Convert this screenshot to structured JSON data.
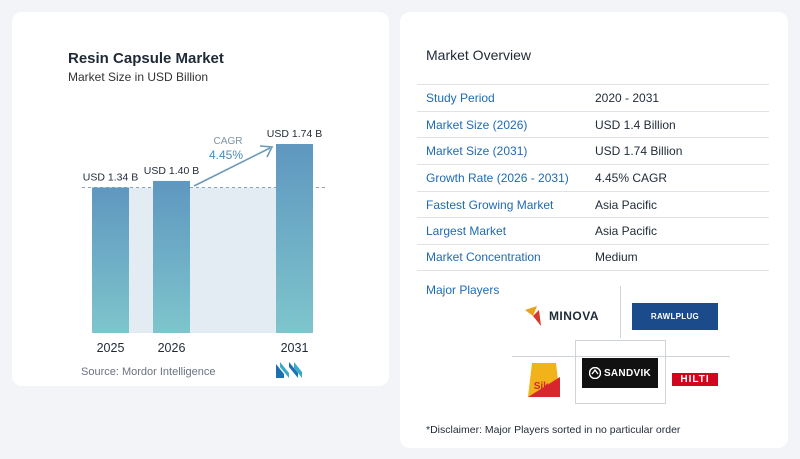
{
  "chart_data": {
    "type": "bar",
    "title": "Resin Capsule Market",
    "subtitle": "Market Size in USD Billion",
    "categories": [
      "2025",
      "2026",
      "2031"
    ],
    "values": [
      1.34,
      1.4,
      1.74
    ],
    "value_labels": [
      "USD 1.34 B",
      "USD 1.40 B",
      "USD 1.74 B"
    ],
    "cagr_label": "CAGR",
    "cagr_value": "4.45%",
    "xlabel": "",
    "ylabel": "",
    "grid": false,
    "colors": {
      "bar_top": "#5f97c0",
      "bar_bottom": "#7ec5cc",
      "arrow": "#6a9ab8",
      "band": "#e3ecf3"
    }
  },
  "source_text": "Source:  Mordor Intelligence",
  "overview": {
    "title": "Market Overview",
    "rows": [
      {
        "label": "Study Period",
        "value": "2020 - 2031"
      },
      {
        "label": "Market Size (2026)",
        "value": "USD 1.4 Billion"
      },
      {
        "label": "Market Size (2031)",
        "value": "USD 1.74 Billion"
      },
      {
        "label": "Growth Rate (2026 - 2031)",
        "value": "4.45% CAGR"
      },
      {
        "label": "Fastest Growing Market",
        "value": "Asia Pacific"
      },
      {
        "label": "Largest Market",
        "value": "Asia Pacific"
      },
      {
        "label": "Market Concentration",
        "value": "Medium"
      }
    ]
  },
  "players": {
    "title": "Major Players",
    "logos": {
      "minova": "MINOVA",
      "rawlplug": "RAWLPLUG",
      "sika": "Sika",
      "sandvik": "SANDVIK",
      "hilti": "HILTI"
    }
  },
  "disclaimer": "*Disclaimer: Major Players sorted in no particular order"
}
